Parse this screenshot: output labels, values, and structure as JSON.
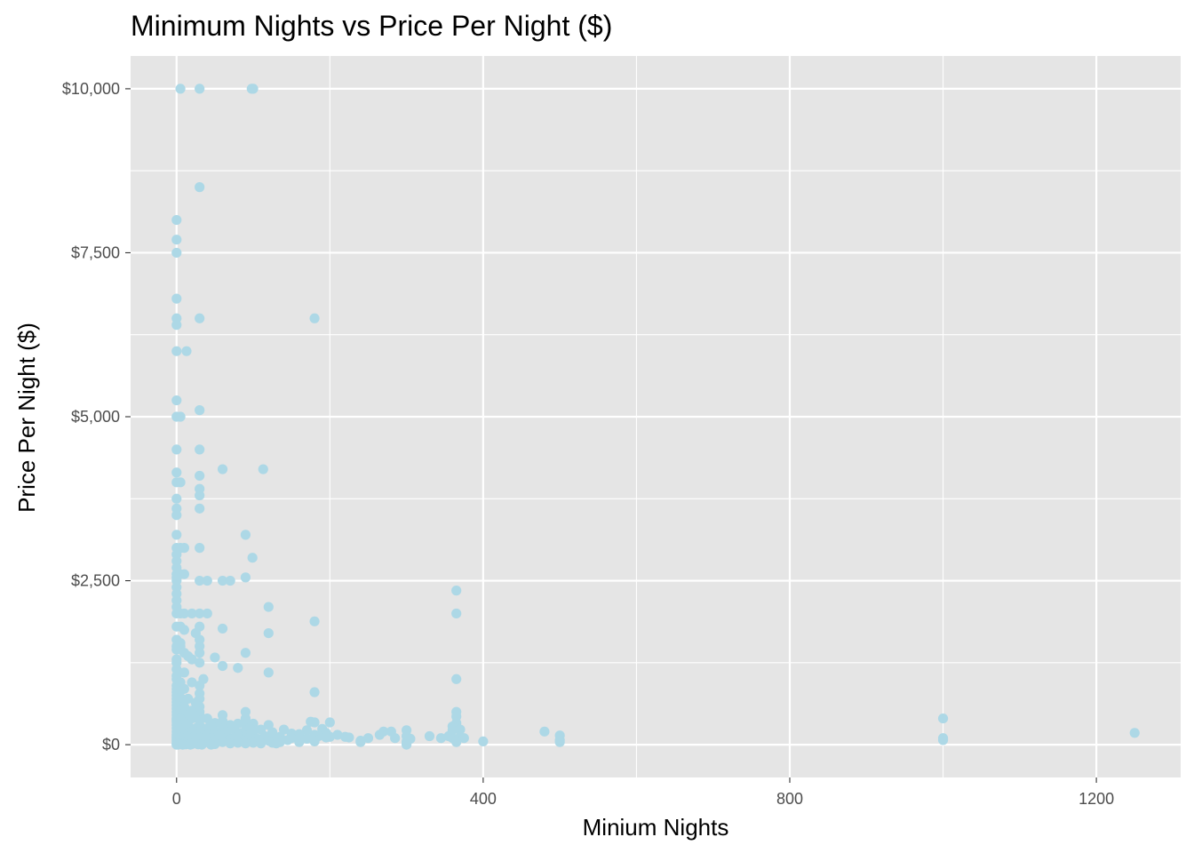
{
  "chart_data": {
    "type": "scatter",
    "title": "Minimum Nights vs Price Per Night ($)",
    "xlabel": "Minium Nights",
    "ylabel": "Price Per Night ($)",
    "xlim": [
      -60,
      1310
    ],
    "ylim": [
      -500,
      10500
    ],
    "x_ticks": [
      0,
      400,
      800,
      1200
    ],
    "x_tick_labels": [
      "0",
      "400",
      "800",
      "1200"
    ],
    "y_ticks": [
      0,
      2500,
      5000,
      7500,
      10000
    ],
    "y_tick_labels": [
      "$0",
      "$2,500",
      "$5,000",
      "$7,500",
      "$10,000"
    ],
    "grid": true,
    "legend": "none",
    "colors": {
      "panel": "#e5e5e5",
      "point": "#add8e6",
      "grid": "#ffffff"
    },
    "points": [
      [
        5,
        10000
      ],
      [
        30,
        10000
      ],
      [
        98,
        10000
      ],
      [
        100,
        10000
      ],
      [
        30,
        8500
      ],
      [
        0,
        8000
      ],
      [
        0,
        7700
      ],
      [
        0,
        7500
      ],
      [
        0,
        6800
      ],
      [
        0,
        6500
      ],
      [
        0,
        6400
      ],
      [
        30,
        6500
      ],
      [
        180,
        6500
      ],
      [
        0,
        6000
      ],
      [
        13,
        6000
      ],
      [
        0,
        5250
      ],
      [
        0,
        5000
      ],
      [
        5,
        5000
      ],
      [
        30,
        5100
      ],
      [
        0,
        4500
      ],
      [
        30,
        4500
      ],
      [
        0,
        4150
      ],
      [
        30,
        4100
      ],
      [
        60,
        4200
      ],
      [
        113,
        4200
      ],
      [
        0,
        4000
      ],
      [
        5,
        4000
      ],
      [
        30,
        3900
      ],
      [
        30,
        3800
      ],
      [
        0,
        3750
      ],
      [
        0,
        3600
      ],
      [
        30,
        3600
      ],
      [
        0,
        3500
      ],
      [
        0,
        3200
      ],
      [
        90,
        3200
      ],
      [
        0,
        3000
      ],
      [
        5,
        3000
      ],
      [
        10,
        3000
      ],
      [
        30,
        3000
      ],
      [
        99,
        2850
      ],
      [
        0,
        2900
      ],
      [
        0,
        2800
      ],
      [
        0,
        2700
      ],
      [
        0,
        2600
      ],
      [
        5,
        2600
      ],
      [
        10,
        2600
      ],
      [
        0,
        2550
      ],
      [
        90,
        2550
      ],
      [
        0,
        2500
      ],
      [
        30,
        2500
      ],
      [
        40,
        2500
      ],
      [
        60,
        2500
      ],
      [
        70,
        2500
      ],
      [
        365,
        2350
      ],
      [
        0,
        2400
      ],
      [
        0,
        2300
      ],
      [
        0,
        2200
      ],
      [
        0,
        2100
      ],
      [
        120,
        2100
      ],
      [
        0,
        2000
      ],
      [
        5,
        2000
      ],
      [
        10,
        2000
      ],
      [
        20,
        2000
      ],
      [
        30,
        2000
      ],
      [
        40,
        2000
      ],
      [
        365,
        2000
      ],
      [
        180,
        1880
      ],
      [
        0,
        1800
      ],
      [
        5,
        1800
      ],
      [
        10,
        1750
      ],
      [
        30,
        1800
      ],
      [
        60,
        1770
      ],
      [
        120,
        1700
      ],
      [
        25,
        1700
      ],
      [
        0,
        1600
      ],
      [
        5,
        1550
      ],
      [
        30,
        1600
      ],
      [
        0,
        1500
      ],
      [
        5,
        1500
      ],
      [
        30,
        1500
      ],
      [
        0,
        1450
      ],
      [
        10,
        1400
      ],
      [
        30,
        1400
      ],
      [
        90,
        1400
      ],
      [
        15,
        1350
      ],
      [
        50,
        1330
      ],
      [
        0,
        1300
      ],
      [
        20,
        1300
      ],
      [
        0,
        1250
      ],
      [
        30,
        1250
      ],
      [
        60,
        1200
      ],
      [
        80,
        1170
      ],
      [
        120,
        1100
      ],
      [
        0,
        1150
      ],
      [
        10,
        1100
      ],
      [
        0,
        1050
      ],
      [
        35,
        1000
      ],
      [
        365,
        1000
      ],
      [
        0,
        1000
      ],
      [
        5,
        950
      ],
      [
        20,
        950
      ],
      [
        30,
        900
      ],
      [
        0,
        900
      ],
      [
        0,
        850
      ],
      [
        10,
        850
      ],
      [
        180,
        800
      ],
      [
        0,
        800
      ],
      [
        30,
        780
      ],
      [
        0,
        750
      ],
      [
        5,
        720
      ],
      [
        0,
        700
      ],
      [
        15,
        700
      ],
      [
        30,
        700
      ],
      [
        0,
        650
      ],
      [
        5,
        620
      ],
      [
        25,
        640
      ],
      [
        0,
        600
      ],
      [
        10,
        580
      ],
      [
        30,
        580
      ],
      [
        0,
        550
      ],
      [
        5,
        530
      ],
      [
        20,
        520
      ],
      [
        0,
        500
      ],
      [
        30,
        500
      ],
      [
        90,
        500
      ],
      [
        365,
        500
      ],
      [
        0,
        450
      ],
      [
        10,
        450
      ],
      [
        30,
        450
      ],
      [
        60,
        450
      ],
      [
        365,
        430
      ],
      [
        0,
        400
      ],
      [
        5,
        400
      ],
      [
        20,
        400
      ],
      [
        40,
        400
      ],
      [
        90,
        400
      ],
      [
        1000,
        400
      ],
      [
        0,
        380
      ],
      [
        30,
        370
      ],
      [
        60,
        360
      ],
      [
        0,
        350
      ],
      [
        10,
        340
      ],
      [
        50,
        330
      ],
      [
        80,
        320
      ],
      [
        100,
        320
      ],
      [
        180,
        340
      ],
      [
        200,
        340
      ],
      [
        365,
        330
      ],
      [
        0,
        300
      ],
      [
        5,
        300
      ],
      [
        15,
        300
      ],
      [
        30,
        300
      ],
      [
        45,
        300
      ],
      [
        70,
        300
      ],
      [
        90,
        300
      ],
      [
        120,
        300
      ],
      [
        175,
        350
      ],
      [
        360,
        280
      ],
      [
        365,
        250
      ],
      [
        0,
        250
      ],
      [
        10,
        250
      ],
      [
        25,
        250
      ],
      [
        40,
        250
      ],
      [
        60,
        250
      ],
      [
        75,
        240
      ],
      [
        95,
        250
      ],
      [
        110,
        230
      ],
      [
        140,
        230
      ],
      [
        170,
        220
      ],
      [
        190,
        240
      ],
      [
        270,
        200
      ],
      [
        280,
        200
      ],
      [
        300,
        220
      ],
      [
        360,
        220
      ],
      [
        370,
        230
      ],
      [
        480,
        200
      ],
      [
        0,
        200
      ],
      [
        5,
        200
      ],
      [
        20,
        200
      ],
      [
        30,
        200
      ],
      [
        50,
        200
      ],
      [
        65,
        190
      ],
      [
        85,
        180
      ],
      [
        100,
        200
      ],
      [
        125,
        190
      ],
      [
        150,
        170
      ],
      [
        160,
        160
      ],
      [
        180,
        150
      ],
      [
        195,
        180
      ],
      [
        210,
        150
      ],
      [
        1250,
        180
      ],
      [
        0,
        150
      ],
      [
        10,
        150
      ],
      [
        25,
        150
      ],
      [
        40,
        150
      ],
      [
        55,
        140
      ],
      [
        80,
        140
      ],
      [
        95,
        150
      ],
      [
        115,
        130
      ],
      [
        135,
        120
      ],
      [
        155,
        140
      ],
      [
        185,
        130
      ],
      [
        200,
        120
      ],
      [
        220,
        120
      ],
      [
        265,
        150
      ],
      [
        300,
        130
      ],
      [
        330,
        130
      ],
      [
        355,
        130
      ],
      [
        370,
        120
      ],
      [
        500,
        140
      ],
      [
        0,
        120
      ],
      [
        5,
        110
      ],
      [
        15,
        110
      ],
      [
        30,
        110
      ],
      [
        45,
        100
      ],
      [
        60,
        100
      ],
      [
        75,
        110
      ],
      [
        90,
        100
      ],
      [
        105,
        90
      ],
      [
        125,
        100
      ],
      [
        150,
        100
      ],
      [
        170,
        90
      ],
      [
        195,
        110
      ],
      [
        225,
        110
      ],
      [
        250,
        100
      ],
      [
        285,
        100
      ],
      [
        305,
        90
      ],
      [
        345,
        100
      ],
      [
        360,
        100
      ],
      [
        375,
        100
      ],
      [
        1000,
        100
      ],
      [
        0,
        90
      ],
      [
        10,
        80
      ],
      [
        20,
        80
      ],
      [
        35,
        80
      ],
      [
        50,
        70
      ],
      [
        70,
        80
      ],
      [
        85,
        70
      ],
      [
        100,
        70
      ],
      [
        120,
        60
      ],
      [
        145,
        70
      ],
      [
        180,
        80
      ],
      [
        240,
        60
      ],
      [
        300,
        50
      ],
      [
        365,
        60
      ],
      [
        500,
        70
      ],
      [
        1000,
        70
      ],
      [
        0,
        60
      ],
      [
        5,
        50
      ],
      [
        15,
        40
      ],
      [
        25,
        50
      ],
      [
        40,
        40
      ],
      [
        60,
        40
      ],
      [
        80,
        30
      ],
      [
        100,
        30
      ],
      [
        135,
        40
      ],
      [
        160,
        40
      ],
      [
        180,
        50
      ],
      [
        240,
        40
      ],
      [
        300,
        20
      ],
      [
        365,
        40
      ],
      [
        400,
        50
      ],
      [
        500,
        40
      ],
      [
        0,
        30
      ],
      [
        5,
        20
      ],
      [
        10,
        20
      ],
      [
        20,
        10
      ],
      [
        30,
        20
      ],
      [
        50,
        10
      ],
      [
        70,
        20
      ],
      [
        90,
        20
      ],
      [
        110,
        20
      ],
      [
        125,
        30
      ],
      [
        130,
        20
      ],
      [
        0,
        10
      ],
      [
        3,
        10
      ],
      [
        7,
        5
      ],
      [
        12,
        5
      ],
      [
        28,
        5
      ],
      [
        0,
        0
      ],
      [
        2,
        0
      ],
      [
        8,
        0
      ],
      [
        18,
        0
      ],
      [
        33,
        0
      ],
      [
        45,
        0
      ],
      [
        300,
        0
      ]
    ]
  }
}
